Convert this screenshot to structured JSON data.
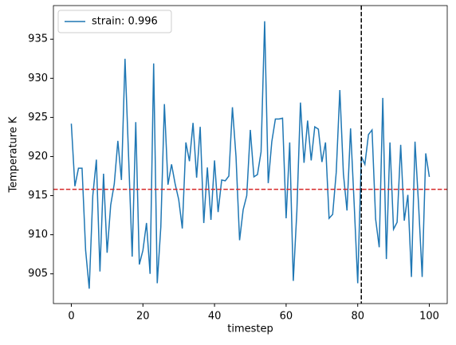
{
  "chart_data": {
    "type": "line",
    "xlabel": "timestep",
    "ylabel": "Temperature K",
    "x": [
      0,
      1,
      2,
      3,
      4,
      5,
      6,
      7,
      8,
      9,
      10,
      11,
      12,
      13,
      14,
      15,
      16,
      17,
      18,
      19,
      20,
      21,
      22,
      23,
      24,
      25,
      26,
      27,
      28,
      29,
      30,
      31,
      32,
      33,
      34,
      35,
      36,
      37,
      38,
      39,
      40,
      41,
      42,
      43,
      44,
      45,
      46,
      47,
      48,
      49,
      50,
      51,
      52,
      53,
      54,
      55,
      56,
      57,
      58,
      59,
      60,
      61,
      62,
      63,
      64,
      65,
      66,
      67,
      68,
      69,
      70,
      71,
      72,
      73,
      74,
      75,
      76,
      77,
      78,
      79,
      80,
      81,
      82,
      83,
      84,
      85,
      86,
      87,
      88,
      89,
      90,
      91,
      92,
      93,
      94,
      95,
      96,
      97,
      98,
      99,
      100
    ],
    "series": [
      {
        "name": "strain: 0.996",
        "color": "#1f77b4",
        "values": [
          924.2,
          916.2,
          918.5,
          918.5,
          908,
          903.1,
          915,
          919.6,
          905.3,
          917.8,
          907.7,
          913.8,
          916.5,
          922,
          917,
          932.5,
          920,
          907.2,
          924.4,
          906.2,
          908,
          911.5,
          905,
          931.9,
          903.8,
          911,
          926.7,
          916.4,
          919,
          916.5,
          914.5,
          910.8,
          921.8,
          919.4,
          924.3,
          917.3,
          923.8,
          911.5,
          918.6,
          911.9,
          919.5,
          912.9,
          917,
          916.9,
          917.5,
          926.3,
          920,
          909.3,
          913.2,
          915,
          923.4,
          917.4,
          917.7,
          920.6,
          937.3,
          916.6,
          921.9,
          924.8,
          924.8,
          924.9,
          912.1,
          921.8,
          904.1,
          913,
          926.9,
          919.2,
          924.6,
          919.5,
          923.8,
          923.5,
          919.3,
          921.8,
          912.1,
          912.6,
          918,
          928.5,
          917.8,
          913.1,
          923.6,
          914,
          903.8,
          920,
          919,
          922.8,
          923.4,
          912,
          908.4,
          927.5,
          906.9,
          921.8,
          910.7,
          911.6,
          921.5,
          911.8,
          915.1,
          904.6,
          921.9,
          913.8,
          904.6,
          920.4,
          917.4
        ]
      }
    ],
    "hlines": [
      {
        "y": 915.8,
        "color": "#d62728"
      }
    ],
    "vlines": [
      {
        "x": 81,
        "color": "#000000"
      }
    ],
    "xlim": [
      -5,
      105
    ],
    "ylim": [
      901.2,
      939.3
    ],
    "xticks": [
      0,
      20,
      40,
      60,
      80,
      100
    ],
    "yticks": [
      905,
      910,
      915,
      920,
      925,
      930,
      935
    ],
    "legend": "upper left",
    "grid": false
  }
}
